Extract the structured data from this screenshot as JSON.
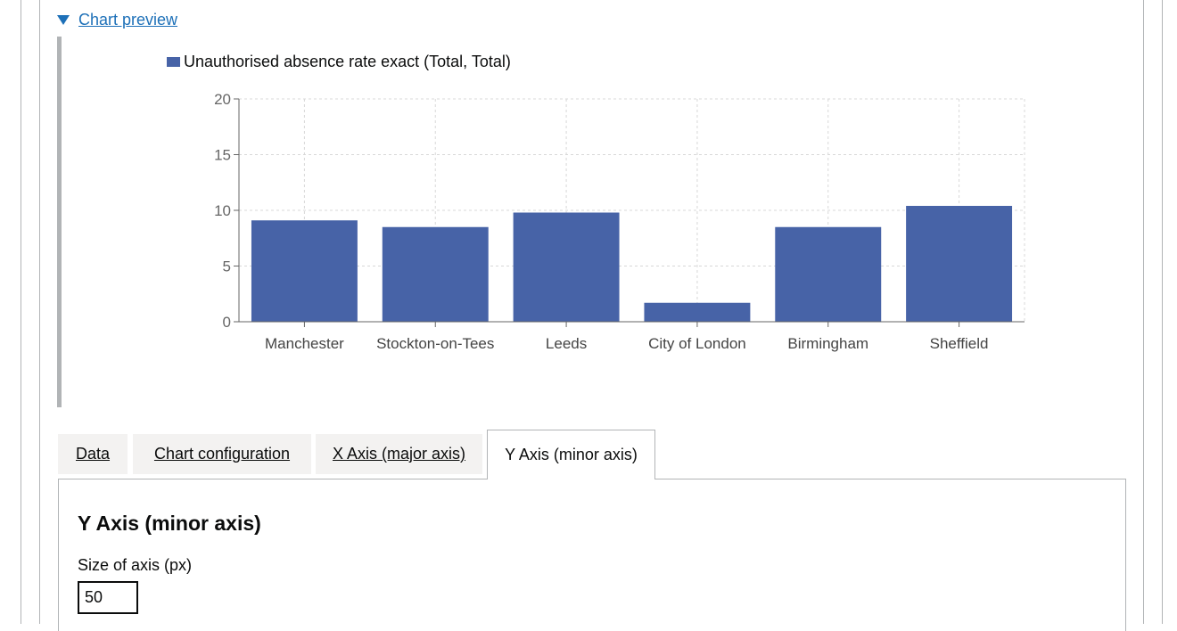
{
  "details": {
    "summary_label": "Chart preview"
  },
  "chart_data": {
    "type": "bar",
    "categories": [
      "Manchester",
      "Stockton-on-Tees",
      "Leeds",
      "City of London",
      "Birmingham",
      "Sheffield"
    ],
    "series": [
      {
        "name": "Unauthorised absence rate exact (Total, Total)",
        "values": [
          9.1,
          8.5,
          9.8,
          1.7,
          8.5,
          10.4
        ],
        "color": "#4763a7"
      }
    ],
    "y_ticks": [
      "0",
      "5",
      "10",
      "15",
      "20"
    ],
    "ylim": [
      0,
      20
    ],
    "grid": true,
    "legend_position": "top"
  },
  "tabs": [
    {
      "label": "Data"
    },
    {
      "label": "Chart configuration"
    },
    {
      "label": "X Axis (major axis)"
    },
    {
      "label": "Y Axis (minor axis)"
    }
  ],
  "panel": {
    "title": "Y Axis (minor axis)",
    "size_label": "Size of axis (px)",
    "size_value": "50"
  },
  "colors": {
    "link": "#1d70b8",
    "bar": "#4763a7",
    "border": "#b1b4b6",
    "tab_bg": "#f3f2f1"
  }
}
